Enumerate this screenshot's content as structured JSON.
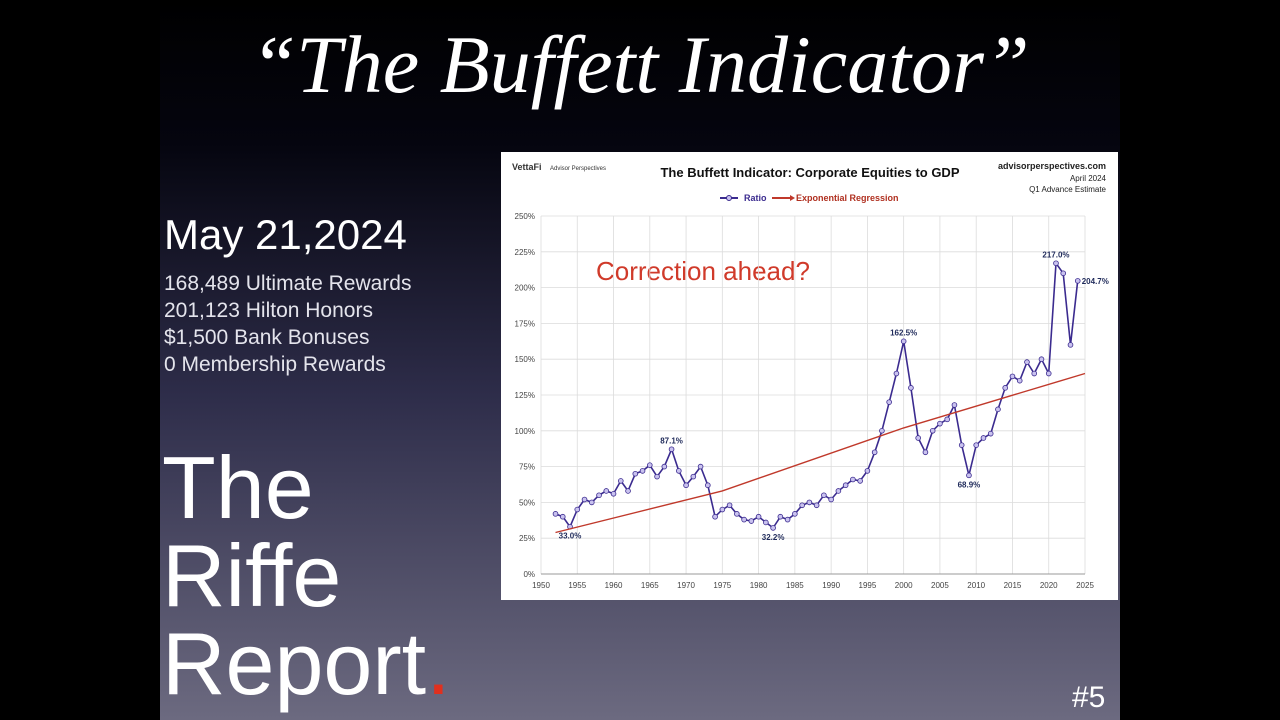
{
  "slide": {
    "title": "“The Buffett Indicator”",
    "date": "May 21,2024",
    "stats": [
      "168,489 Ultimate Rewards",
      "201,123 Hilton Honors",
      "$1,500 Bank Bonuses",
      "0 Membership Rewards"
    ],
    "brand": [
      "The",
      "Riffe",
      "Report"
    ],
    "brand_dot": ".",
    "number": "#5"
  },
  "chart_data": {
    "type": "line",
    "logo": "VettaFi",
    "logo_sub": "Advisor Perspectives",
    "title": "The Buffett Indicator: Corporate Equities to GDP",
    "source": "advisorperspectives.com",
    "source_date": "April 2024",
    "source_note": "Q1 Advance Estimate",
    "annotation": "Correction ahead?",
    "x": [
      1952,
      1953,
      1954,
      1955,
      1956,
      1957,
      1958,
      1959,
      1960,
      1961,
      1962,
      1963,
      1964,
      1965,
      1966,
      1967,
      1968,
      1969,
      1970,
      1971,
      1972,
      1973,
      1974,
      1975,
      1976,
      1977,
      1978,
      1979,
      1980,
      1981,
      1982,
      1983,
      1984,
      1985,
      1986,
      1987,
      1988,
      1989,
      1990,
      1991,
      1992,
      1993,
      1994,
      1995,
      1996,
      1997,
      1998,
      1999,
      2000,
      2001,
      2002,
      2003,
      2004,
      2005,
      2006,
      2007,
      2008,
      2009,
      2010,
      2011,
      2012,
      2013,
      2014,
      2015,
      2016,
      2017,
      2018,
      2019,
      2020,
      2021,
      2022,
      2023,
      2024
    ],
    "series": [
      {
        "name": "Ratio",
        "color": "#3b2b8f",
        "values": [
          42,
          40,
          33.0,
          45,
          52,
          50,
          55,
          58,
          56,
          65,
          58,
          70,
          72,
          76,
          68,
          75,
          87.1,
          72,
          62,
          68,
          75,
          62,
          40,
          45,
          48,
          42,
          38,
          37,
          40,
          36,
          32.2,
          40,
          38,
          42,
          48,
          50,
          48,
          55,
          52,
          58,
          62,
          66,
          65,
          72,
          85,
          100,
          120,
          140,
          162.5,
          130,
          95,
          85,
          100,
          105,
          108,
          118,
          90,
          68.9,
          90,
          95,
          98,
          115,
          130,
          138,
          135,
          148,
          140,
          150,
          140,
          217.0,
          210,
          160,
          204.7
        ],
        "value_labels": [
          null,
          null,
          "33.0%",
          null,
          null,
          null,
          null,
          null,
          null,
          null,
          null,
          null,
          null,
          null,
          null,
          null,
          "87.1%",
          null,
          null,
          null,
          null,
          null,
          null,
          null,
          null,
          null,
          null,
          null,
          null,
          null,
          "32.2%",
          null,
          null,
          null,
          null,
          null,
          null,
          null,
          null,
          null,
          null,
          null,
          null,
          null,
          null,
          null,
          null,
          null,
          "162.5%",
          null,
          null,
          null,
          null,
          null,
          null,
          null,
          null,
          "68.9%",
          null,
          null,
          null,
          null,
          null,
          null,
          null,
          null,
          null,
          null,
          null,
          "217.0%",
          null,
          null,
          "204.7%"
        ]
      },
      {
        "name": "Exponential Regression",
        "color": "#c0392b",
        "x": [
          1952,
          1975,
          2000,
          2025
        ],
        "values": [
          29,
          58,
          102,
          140
        ]
      }
    ],
    "xlim": [
      1950,
      2025
    ],
    "xticks": [
      1950,
      1955,
      1960,
      1965,
      1970,
      1975,
      1980,
      1985,
      1990,
      1995,
      2000,
      2005,
      2010,
      2015,
      2020,
      2025
    ],
    "ylim": [
      0,
      250
    ],
    "yticks": [
      {
        "value": 0,
        "label": "0%"
      },
      {
        "value": 25,
        "label": "25%"
      },
      {
        "value": 50,
        "label": "50%"
      },
      {
        "value": 75,
        "label": "75%"
      },
      {
        "value": 100,
        "label": "100%"
      },
      {
        "value": 125,
        "label": "125%"
      },
      {
        "value": 150,
        "label": "150%"
      },
      {
        "value": 175,
        "label": "175%"
      },
      {
        "value": 200,
        "label": "200%"
      },
      {
        "value": 225,
        "label": "225%"
      },
      {
        "value": 250,
        "label": "250%"
      }
    ],
    "grid": true
  }
}
